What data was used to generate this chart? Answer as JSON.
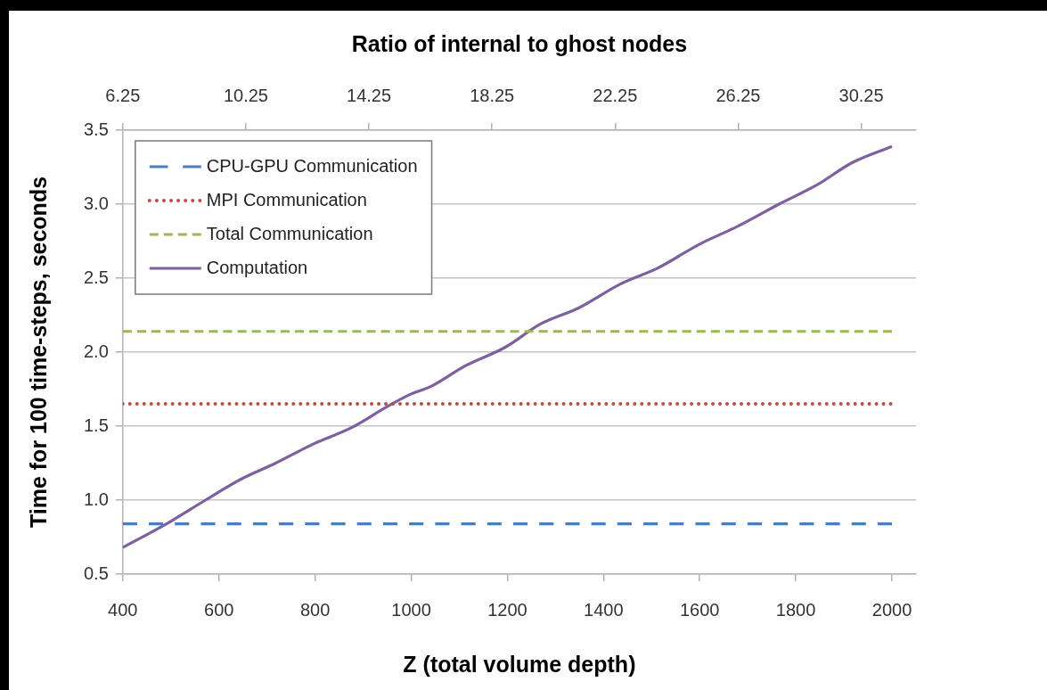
{
  "chart_data": {
    "type": "line",
    "xlabel": "Z (total volume depth)",
    "x2label": "Ratio of internal to ghost nodes",
    "ylabel": "Time for 100 time-steps, seconds",
    "xlim": [
      400,
      2050
    ],
    "xticks": [
      400,
      600,
      800,
      1000,
      1200,
      1400,
      1600,
      1800,
      2000
    ],
    "x2lim": [
      6.25,
      32.03
    ],
    "x2ticks": [
      6.25,
      10.25,
      14.25,
      18.25,
      22.25,
      26.25,
      30.25
    ],
    "ylim": [
      0.5,
      3.5
    ],
    "yticks": [
      0.5,
      {
        "value": 1,
        "label": "1.0"
      },
      1.5,
      {
        "value": 2,
        "label": "2.0"
      },
      2.5,
      {
        "value": 3,
        "label": "3.0"
      },
      3.5
    ],
    "grid": "y",
    "legend": "top left",
    "marker": "none",
    "series": [
      {
        "name": "CPU-GPU Communication",
        "color": "#4a7ebb",
        "line_style": "dashed",
        "x": [
          400,
          2000
        ],
        "values": [
          0.84,
          0.84
        ]
      },
      {
        "name": "MPI Communication",
        "color": "#be4b48",
        "line_style": "dotted",
        "x": [
          400,
          2000
        ],
        "values": [
          1.65,
          1.65
        ]
      },
      {
        "name": "Total Communication",
        "color": "#98b954",
        "line_style": "dashed",
        "x": [
          400,
          2000
        ],
        "values": [
          2.14,
          2.14
        ]
      },
      {
        "name": "Computation",
        "color": "#7d60a0",
        "line_style": "solid",
        "x": [
          400,
          486,
          572,
          645,
          718,
          797,
          876,
          949,
          995,
          1042,
          1114,
          1194,
          1269,
          1349,
          1435,
          1514,
          1600,
          1679,
          1765,
          1844,
          1917,
          2000
        ],
        "values": [
          0.68,
          0.83,
          1.0,
          1.14,
          1.25,
          1.38,
          1.49,
          1.63,
          1.71,
          1.77,
          1.91,
          2.03,
          2.19,
          2.3,
          2.46,
          2.57,
          2.73,
          2.85,
          3.0,
          3.13,
          3.28,
          3.39
        ]
      }
    ]
  }
}
